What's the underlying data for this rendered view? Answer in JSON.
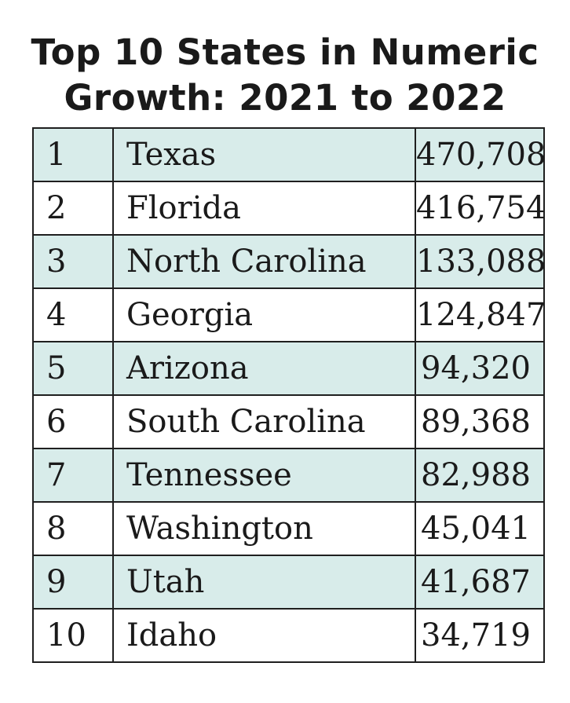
{
  "chart_data": {
    "type": "table",
    "title_lines": [
      "Top 10 States in Numeric",
      "Growth: 2021 to 2022"
    ],
    "row_shading": "#d8ecea",
    "rows": [
      {
        "rank": "1",
        "state": "Texas",
        "growth": 470708,
        "growth_label": "470,708"
      },
      {
        "rank": "2",
        "state": "Florida",
        "growth": 416754,
        "growth_label": "416,754"
      },
      {
        "rank": "3",
        "state": "North Carolina",
        "growth": 133088,
        "growth_label": "133,088"
      },
      {
        "rank": "4",
        "state": "Georgia",
        "growth": 124847,
        "growth_label": "124,847"
      },
      {
        "rank": "5",
        "state": "Arizona",
        "growth": 94320,
        "growth_label": "94,320"
      },
      {
        "rank": "6",
        "state": "South Carolina",
        "growth": 89368,
        "growth_label": "89,368"
      },
      {
        "rank": "7",
        "state": "Tennessee",
        "growth": 82988,
        "growth_label": "82,988"
      },
      {
        "rank": "8",
        "state": "Washington",
        "growth": 45041,
        "growth_label": "45,041"
      },
      {
        "rank": "9",
        "state": "Utah",
        "growth": 41687,
        "growth_label": "41,687"
      },
      {
        "rank": "10",
        "state": "Idaho",
        "growth": 34719,
        "growth_label": "34,719"
      }
    ]
  }
}
